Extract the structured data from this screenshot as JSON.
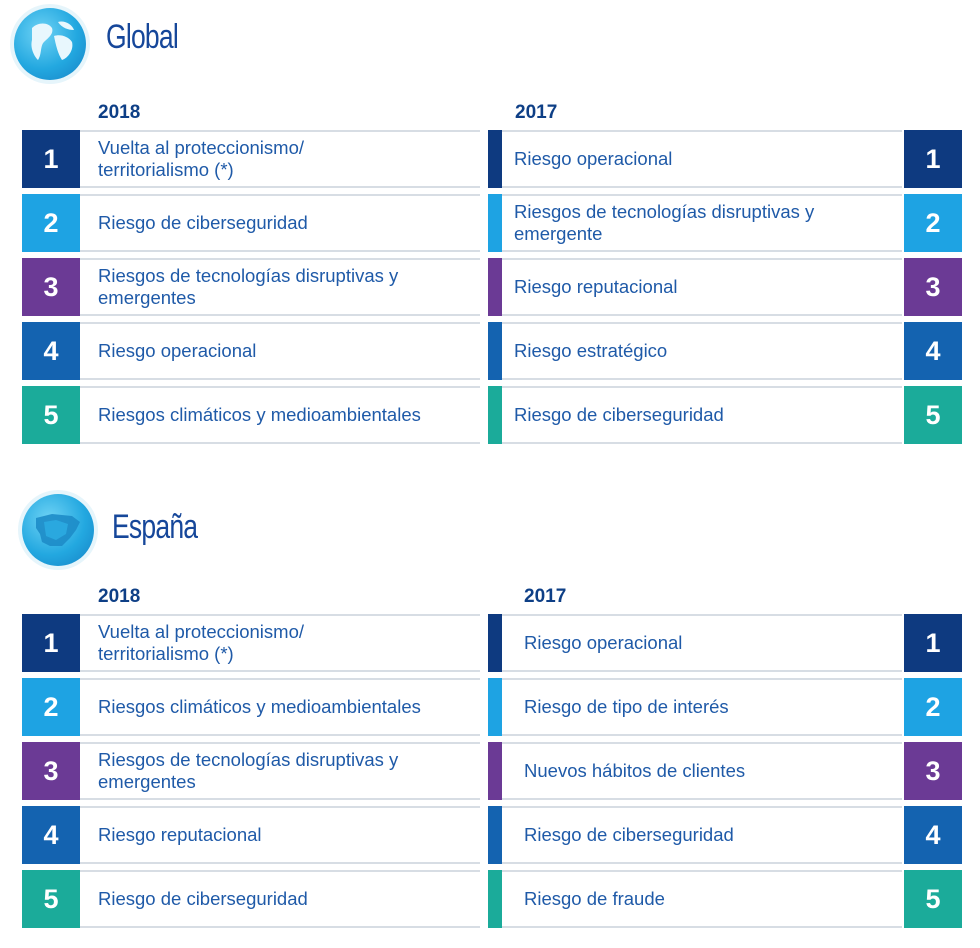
{
  "colors": {
    "rank1": "#0e3a80",
    "rank2": "#1ea3e3",
    "rank3": "#6b3a95",
    "rank4": "#1463b0",
    "rank5": "#1bab9a"
  },
  "global": {
    "title": "Global",
    "icon": "globe-icon",
    "year_left": "2018",
    "year_right": "2017",
    "rows": [
      {
        "num": "1",
        "left": "Vuelta al proteccionismo/\nterritorialismo (*)",
        "right": "Riesgo operacional"
      },
      {
        "num": "2",
        "left": "Riesgo de ciberseguridad",
        "right": "Riesgos de tecnologías disruptivas y\nemergente"
      },
      {
        "num": "3",
        "left": "Riesgos de tecnologías disruptivas y\nemergentes",
        "right": "Riesgo reputacional"
      },
      {
        "num": "4",
        "left": "Riesgo operacional",
        "right": "Riesgo estratégico"
      },
      {
        "num": "5",
        "left": "Riesgos climáticos y medioambientales",
        "right": "Riesgo de ciberseguridad"
      }
    ]
  },
  "spain": {
    "title": "España",
    "icon": "spain-map-icon",
    "year_left": "2018",
    "year_right": "2017",
    "rows": [
      {
        "num": "1",
        "left": "Vuelta al proteccionismo/\nterritorialismo (*)",
        "right": "Riesgo operacional"
      },
      {
        "num": "2",
        "left": "Riesgos climáticos y medioambientales",
        "right": "Riesgo de tipo de interés"
      },
      {
        "num": "3",
        "left": "Riesgos de tecnologías disruptivas y\nemergentes",
        "right": "Nuevos hábitos de clientes"
      },
      {
        "num": "4",
        "left": "Riesgo reputacional",
        "right": "Riesgo de ciberseguridad"
      },
      {
        "num": "5",
        "left": "Riesgo de ciberseguridad",
        "right": "Riesgo de fraude"
      }
    ]
  }
}
